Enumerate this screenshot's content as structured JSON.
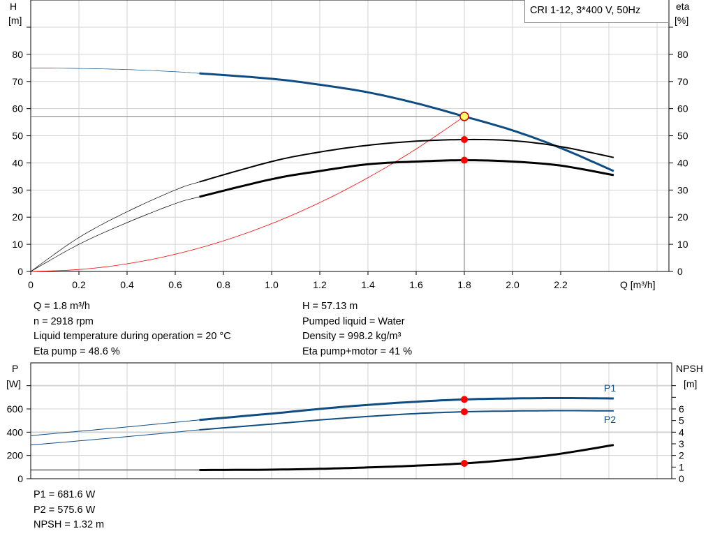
{
  "legend_box": "CRI 1-12, 3*400 V, 50Hz",
  "info_top_left": [
    "Q = 1.8 m³/h",
    "n = 2918 rpm",
    "Liquid temperature during operation = 20 °C",
    "Eta pump = 48.6 %"
  ],
  "info_top_right": [
    "H = 57.13 m",
    "Pumped liquid = Water",
    "Density = 998.2 kg/m³",
    "Eta pump+motor = 41 %"
  ],
  "info_bottom": [
    "P1 = 681.6 W",
    "P2 = 575.6 W",
    "NPSH = 1.32 m"
  ],
  "colors": {
    "blue": "#0f4c81",
    "red": "#ff0000",
    "black": "#000000",
    "grid": "#d3d3d3",
    "yellow": "#ffff66"
  },
  "chart_data": [
    {
      "type": "line",
      "ylabel_left": [
        "H",
        "[m]"
      ],
      "ylabel_right": [
        "eta",
        "[%]"
      ],
      "xlabel": "Q [m³/h]",
      "xlim": [
        0,
        2.6
      ],
      "ylim": [
        0,
        90
      ],
      "xticks": [
        "0",
        "0.2",
        "0.4",
        "0.6",
        "0.8",
        "1.0",
        "1.2",
        "1.4",
        "1.6",
        "1.8",
        "2.0",
        "2.2"
      ],
      "yticks": [
        "0",
        "10",
        "20",
        "30",
        "40",
        "50",
        "60",
        "70",
        "80"
      ],
      "grid": true,
      "operating_point": {
        "Q": 1.8,
        "H": 57.13,
        "eta_pump": 48.6,
        "eta_pump_motor": 41
      },
      "x": [
        0,
        0.2,
        0.4,
        0.6,
        0.7,
        1.0,
        1.2,
        1.4,
        1.6,
        1.8,
        2.0,
        2.2,
        2.42
      ],
      "series": [
        {
          "key": "H",
          "values": [
            75,
            74.8,
            74.4,
            73.6,
            73,
            71,
            68.8,
            66,
            62,
            57.13,
            52,
            45.5,
            37
          ]
        },
        {
          "key": "eta_pump",
          "values": [
            0,
            12.5,
            22,
            30,
            33,
            40.5,
            44,
            46.5,
            48,
            48.6,
            48.2,
            46,
            42
          ]
        },
        {
          "key": "eta_pump_motor",
          "values": [
            0,
            10,
            18,
            25,
            27.5,
            34,
            37,
            39.5,
            40.5,
            41,
            40.5,
            39,
            35.5
          ]
        }
      ],
      "system_curve": {
        "x": [
          0,
          0.2,
          0.4,
          0.6,
          0.8,
          1.0,
          1.2,
          1.4,
          1.6,
          1.8
        ],
        "values": [
          0,
          0.71,
          2.82,
          6.35,
          11.28,
          17.63,
          25.39,
          34.56,
          45.14,
          57.13
        ]
      }
    },
    {
      "type": "line",
      "ylabel_left": [
        "P",
        "[W]"
      ],
      "ylabel_right": [
        "NPSH",
        "[m]"
      ],
      "xlim": [
        0,
        2.6
      ],
      "ylim": [
        0,
        800
      ],
      "ylim_right": [
        0,
        8
      ],
      "yticks": [
        "0",
        "200",
        "400",
        "600"
      ],
      "yticks_right": [
        "0",
        "1",
        "2",
        "3",
        "4",
        "5",
        "6"
      ],
      "grid": true,
      "x": [
        0,
        0.2,
        0.4,
        0.6,
        0.7,
        1.0,
        1.2,
        1.4,
        1.6,
        1.8,
        2.0,
        2.2,
        2.42
      ],
      "series": [
        {
          "name": "P1",
          "values": [
            370,
            408,
            445,
            485,
            505,
            560,
            600,
            635,
            662,
            681.6,
            690,
            693,
            690
          ]
        },
        {
          "name": "P2",
          "values": [
            290,
            325,
            362,
            400,
            420,
            470,
            505,
            535,
            560,
            575.6,
            582,
            585,
            583
          ]
        },
        {
          "key": "NPSH",
          "values": [
            0.75,
            0.75,
            0.75,
            0.75,
            0.75,
            0.78,
            0.85,
            0.97,
            1.12,
            1.32,
            1.65,
            2.15,
            2.9
          ]
        }
      ],
      "operating_point": {
        "Q": 1.8,
        "P1": 681.6,
        "P2": 575.6,
        "NPSH": 1.32
      }
    }
  ]
}
